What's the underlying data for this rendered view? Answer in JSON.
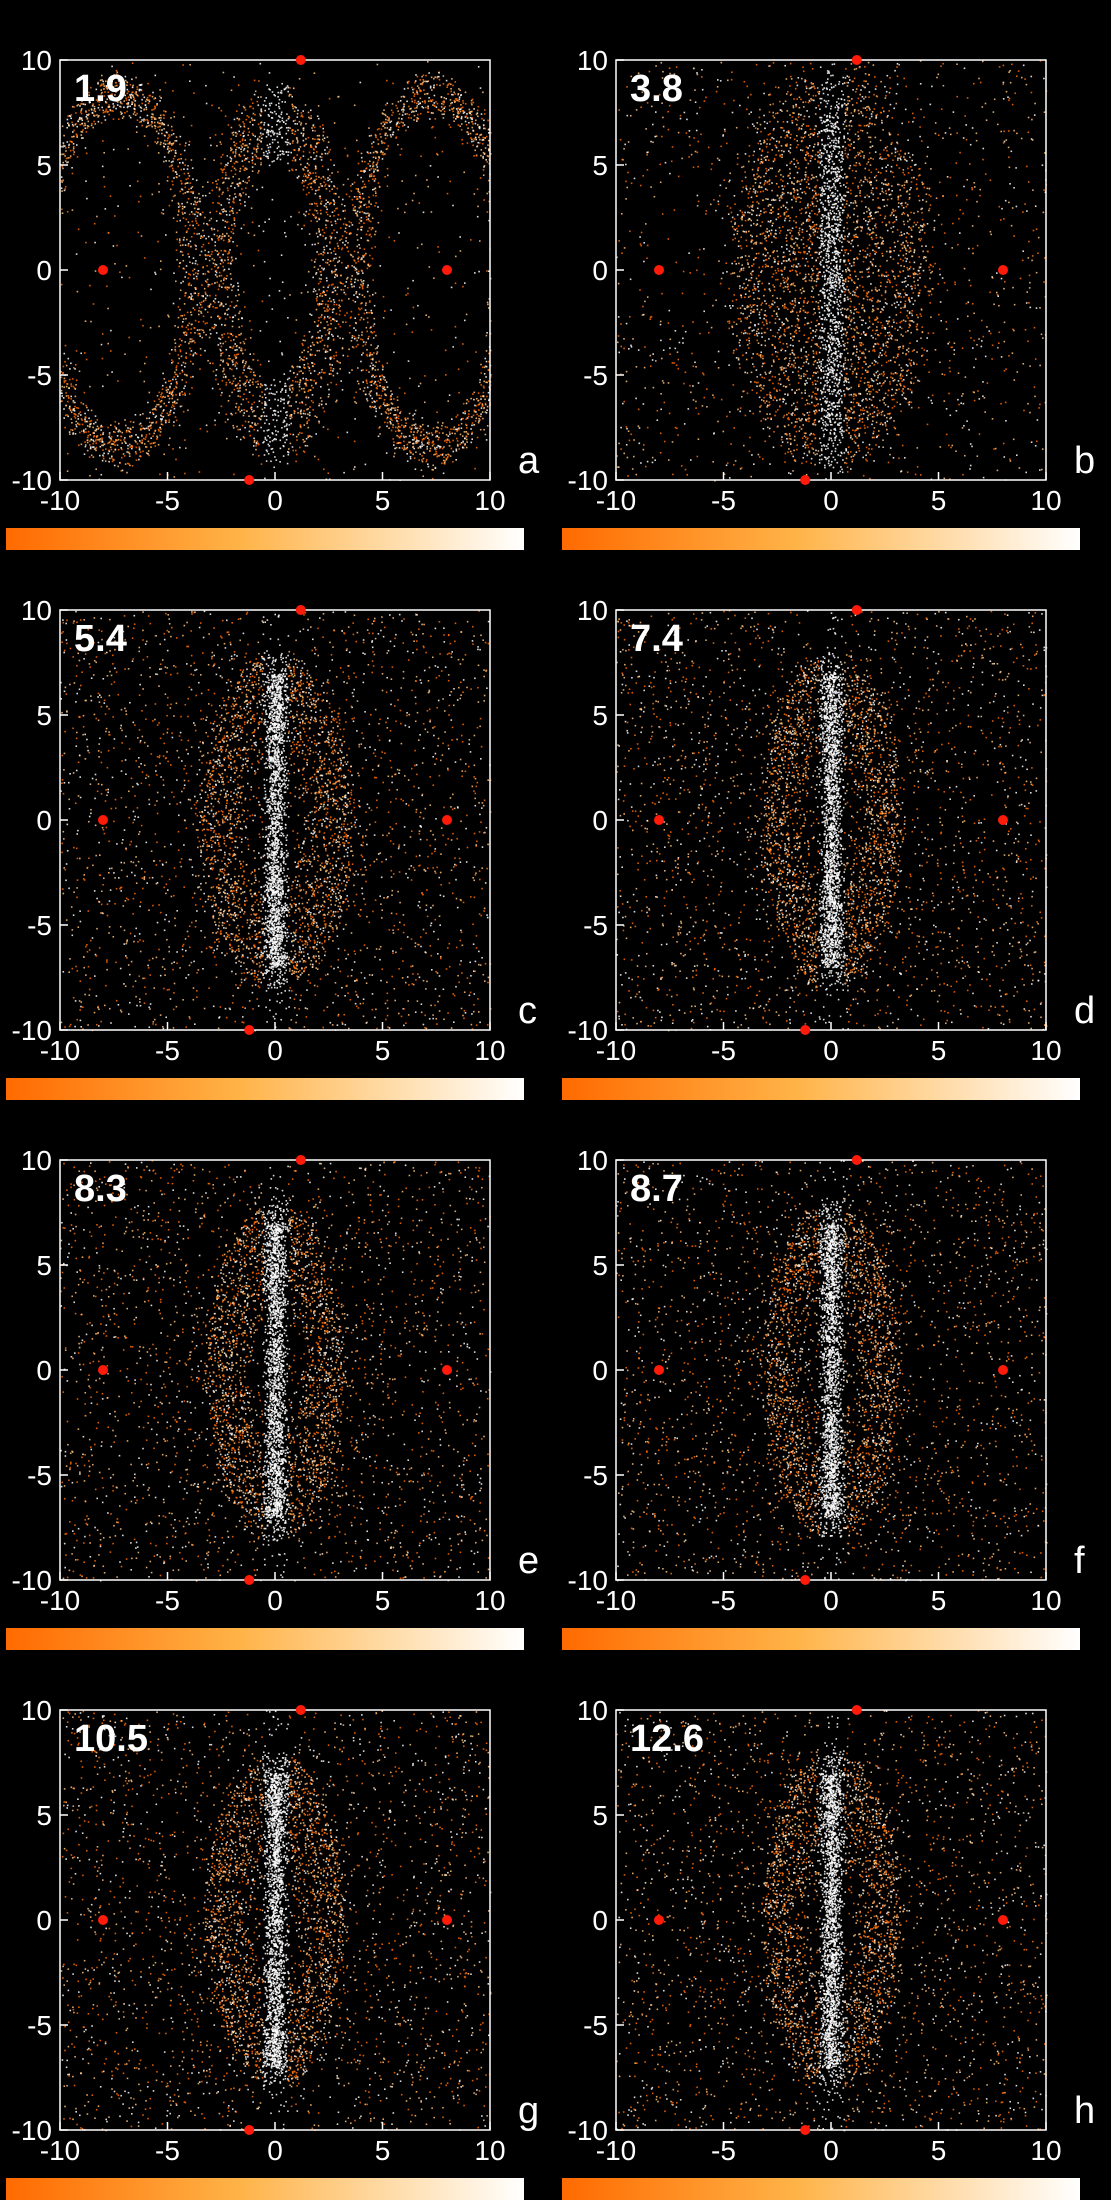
{
  "colors": {
    "background": "#000000",
    "axis": "#ffffff",
    "fixed_point": "#ff1a0a",
    "density_low": "#ff6a00",
    "density_high": "#ffffff"
  },
  "chart_data": [
    {
      "type": "scatter",
      "panel": "a",
      "time_label": "1.9",
      "xlim": [
        -10,
        10
      ],
      "ylim": [
        -10,
        10
      ],
      "x_ticks": [
        -10,
        -5,
        0,
        5,
        10
      ],
      "y_ticks": [
        -10,
        -5,
        0,
        5,
        10
      ],
      "fixed_points": [
        [
          -8,
          0
        ],
        [
          8,
          0
        ],
        [
          1.2,
          10
        ],
        [
          -1.2,
          -10
        ]
      ],
      "colorbar": true
    },
    {
      "type": "scatter",
      "panel": "b",
      "time_label": "3.8",
      "xlim": [
        -10,
        10
      ],
      "ylim": [
        -10,
        10
      ],
      "x_ticks": [
        -10,
        -5,
        0,
        5,
        10
      ],
      "y_ticks": [
        -10,
        -5,
        0,
        5,
        10
      ],
      "fixed_points": [
        [
          -8,
          0
        ],
        [
          8,
          0
        ],
        [
          1.2,
          10
        ],
        [
          -1.2,
          -10
        ]
      ],
      "colorbar": true
    },
    {
      "type": "scatter",
      "panel": "c",
      "time_label": "5.4",
      "xlim": [
        -10,
        10
      ],
      "ylim": [
        -10,
        10
      ],
      "x_ticks": [
        -10,
        -5,
        0,
        5,
        10
      ],
      "y_ticks": [
        -10,
        -5,
        0,
        5,
        10
      ],
      "fixed_points": [
        [
          -8,
          0
        ],
        [
          8,
          0
        ],
        [
          1.2,
          10
        ],
        [
          -1.2,
          -10
        ]
      ],
      "colorbar": true
    },
    {
      "type": "scatter",
      "panel": "d",
      "time_label": "7.4",
      "xlim": [
        -10,
        10
      ],
      "ylim": [
        -10,
        10
      ],
      "x_ticks": [
        -10,
        -5,
        0,
        5,
        10
      ],
      "y_ticks": [
        -10,
        -5,
        0,
        5,
        10
      ],
      "fixed_points": [
        [
          -8,
          0
        ],
        [
          8,
          0
        ],
        [
          1.2,
          10
        ],
        [
          -1.2,
          -10
        ]
      ],
      "colorbar": true
    },
    {
      "type": "scatter",
      "panel": "e",
      "time_label": "8.3",
      "xlim": [
        -10,
        10
      ],
      "ylim": [
        -10,
        10
      ],
      "x_ticks": [
        -10,
        -5,
        0,
        5,
        10
      ],
      "y_ticks": [
        -10,
        -5,
        0,
        5,
        10
      ],
      "fixed_points": [
        [
          -8,
          0
        ],
        [
          8,
          0
        ],
        [
          1.2,
          10
        ],
        [
          -1.2,
          -10
        ]
      ],
      "colorbar": true
    },
    {
      "type": "scatter",
      "panel": "f",
      "time_label": "8.7",
      "xlim": [
        -10,
        10
      ],
      "ylim": [
        -10,
        10
      ],
      "x_ticks": [
        -10,
        -5,
        0,
        5,
        10
      ],
      "y_ticks": [
        -10,
        -5,
        0,
        5,
        10
      ],
      "fixed_points": [
        [
          -8,
          0
        ],
        [
          8,
          0
        ],
        [
          1.2,
          10
        ],
        [
          -1.2,
          -10
        ]
      ],
      "colorbar": true
    },
    {
      "type": "scatter",
      "panel": "g",
      "time_label": "10.5",
      "xlim": [
        -10,
        10
      ],
      "ylim": [
        -10,
        10
      ],
      "x_ticks": [
        -10,
        -5,
        0,
        5,
        10
      ],
      "y_ticks": [
        -10,
        -5,
        0,
        5,
        10
      ],
      "fixed_points": [
        [
          -8,
          0
        ],
        [
          8,
          0
        ],
        [
          1.2,
          10
        ],
        [
          -1.2,
          -10
        ]
      ],
      "colorbar": true
    },
    {
      "type": "scatter",
      "panel": "h",
      "time_label": "12.6",
      "xlim": [
        -10,
        10
      ],
      "ylim": [
        -10,
        10
      ],
      "x_ticks": [
        -10,
        -5,
        0,
        5,
        10
      ],
      "y_ticks": [
        -10,
        -5,
        0,
        5,
        10
      ],
      "fixed_points": [
        [
          -8,
          0
        ],
        [
          8,
          0
        ],
        [
          1.2,
          10
        ],
        [
          -1.2,
          -10
        ]
      ],
      "colorbar": true
    }
  ]
}
